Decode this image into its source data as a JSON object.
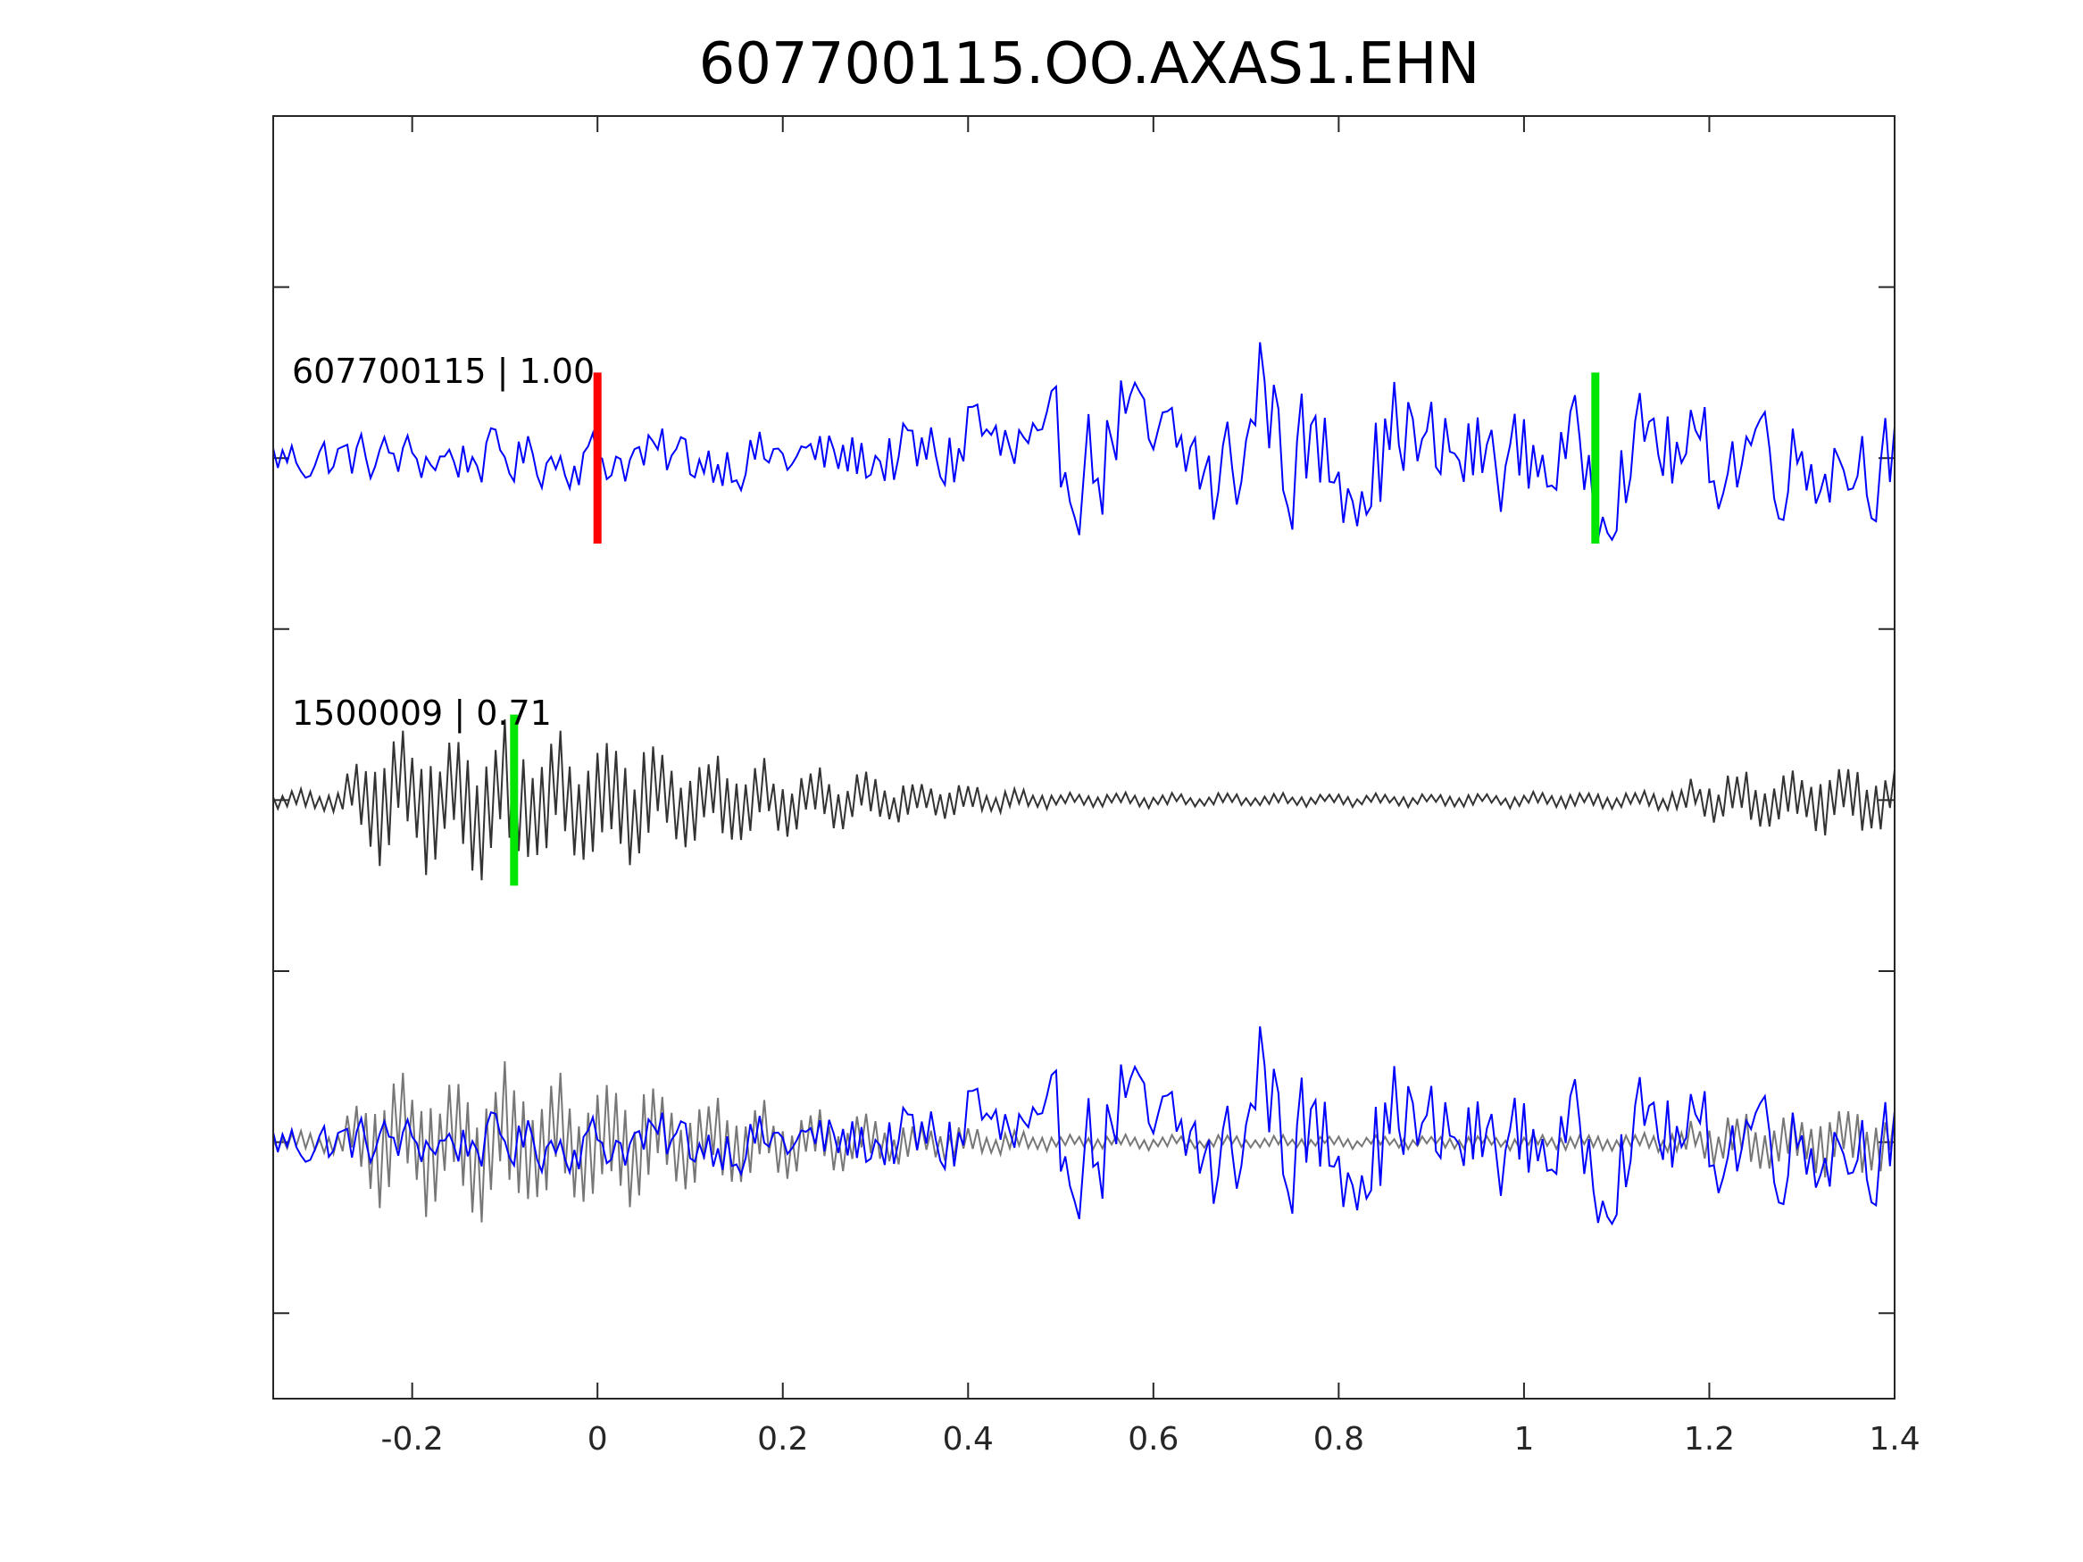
{
  "chart_data": {
    "type": "line",
    "title": "607700115.OO.AXAS1.EHN",
    "xlabel": "",
    "ylabel": "",
    "xlim": [
      -0.35,
      1.4
    ],
    "ylim": [
      0,
      3.75
    ],
    "xticks": [
      -0.2,
      0,
      0.2,
      0.4,
      0.6,
      0.8,
      1,
      1.2,
      1.4
    ],
    "xtick_labels": [
      "-0.2",
      "0",
      "0.2",
      "0.4",
      "0.6",
      "0.8",
      "1",
      "1.2",
      "1.4"
    ],
    "ytick_values": [
      0.25,
      0.75,
      1.25,
      1.75,
      2.25,
      2.75,
      3.25,
      3.75
    ],
    "ytick_labels_shown": false,
    "grid": false,
    "traces": [
      {
        "label": "607700115 | 1.00",
        "color": "#0000ff",
        "baseline": 2.75,
        "amp": 0.25,
        "profile": [
          [
            -0.35,
            0.35
          ],
          [
            0.3,
            0.45
          ],
          [
            0.45,
            0.85
          ],
          [
            0.75,
            1.0
          ],
          [
            1.0,
            0.75
          ],
          [
            1.4,
            0.75
          ]
        ],
        "peaks": [
          {
            "x": 0.407,
            "y": 0.55
          },
          {
            "x": 0.567,
            "y": 0.6
          },
          {
            "x": 0.719,
            "y": 1.05
          },
          {
            "x": 0.868,
            "y": 0.5
          },
          {
            "x": 1.14,
            "y": 0.35
          },
          {
            "x": 1.252,
            "y": 0.35
          }
        ],
        "troughs": [
          {
            "x": 0.479,
            "y": -0.35
          },
          {
            "x": 0.667,
            "y": -0.45
          },
          {
            "x": 1.086,
            "y": -0.35
          }
        ],
        "picks": [
          {
            "x": 0.0,
            "color": "#ff0000"
          },
          {
            "x": 1.077,
            "color": "#00e600"
          }
        ]
      },
      {
        "label": "1500009 | 0.71",
        "color": "#333333",
        "baseline": 1.75,
        "amp": 0.25,
        "profile": [
          [
            -0.35,
            0.1
          ],
          [
            -0.28,
            0.2
          ],
          [
            -0.24,
            0.85
          ],
          [
            -0.2,
            0.95
          ],
          [
            0.0,
            1.0
          ],
          [
            0.12,
            0.6
          ],
          [
            0.35,
            0.25
          ],
          [
            0.5,
            0.1
          ],
          [
            0.85,
            0.08
          ],
          [
            1.15,
            0.12
          ],
          [
            1.2,
            0.35
          ],
          [
            1.4,
            0.5
          ]
        ],
        "peaks": [],
        "troughs": [],
        "picks": [
          {
            "x": -0.09,
            "color": "#00e600"
          }
        ]
      },
      {
        "label": "",
        "color": "#777777",
        "baseline": 0.75,
        "copy_of": 1
      },
      {
        "label": "",
        "color": "#0000ff",
        "baseline": 0.75,
        "copy_of": 0
      }
    ]
  }
}
